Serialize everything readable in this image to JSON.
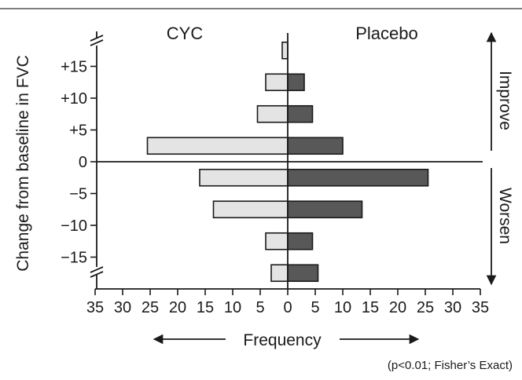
{
  "chart_data": {
    "type": "bar",
    "orientation": "horizontal-back-to-back",
    "y_label": "Change from baseline in FVC",
    "y_ticks": [
      "+15",
      "+10",
      "+5",
      "0",
      "−5",
      "−10",
      "−15"
    ],
    "y_tick_values": [
      15,
      10,
      5,
      0,
      -5,
      -10,
      -15
    ],
    "y_axis_broken_ends": true,
    "x_label": "Frequency",
    "x_ticks": [
      "35",
      "30",
      "25",
      "20",
      "15",
      "10",
      "5",
      "0",
      "5",
      "10",
      "15",
      "20",
      "25",
      "30",
      "35"
    ],
    "xlim": [
      -35,
      35
    ],
    "categories": [
      ">+15",
      "+10 to +15",
      "+5 to +10",
      "0 to +5",
      "0 to −5",
      "−5 to −10",
      "−10 to −15",
      "<−15"
    ],
    "series": [
      {
        "name": "CYC",
        "side": "left",
        "color": "#e4e4e4",
        "values": [
          1,
          4,
          5.5,
          25.5,
          16,
          13.5,
          4,
          3
        ]
      },
      {
        "name": "Placebo",
        "side": "right",
        "color": "#585858",
        "values": [
          0,
          3,
          4.5,
          10,
          25.5,
          13.5,
          4.5,
          5.5
        ]
      }
    ],
    "direction_labels": {
      "up": "Improve",
      "down": "Worsen"
    },
    "footnote": "(p<0.01; Fisher’s Exact)",
    "grid": false
  }
}
